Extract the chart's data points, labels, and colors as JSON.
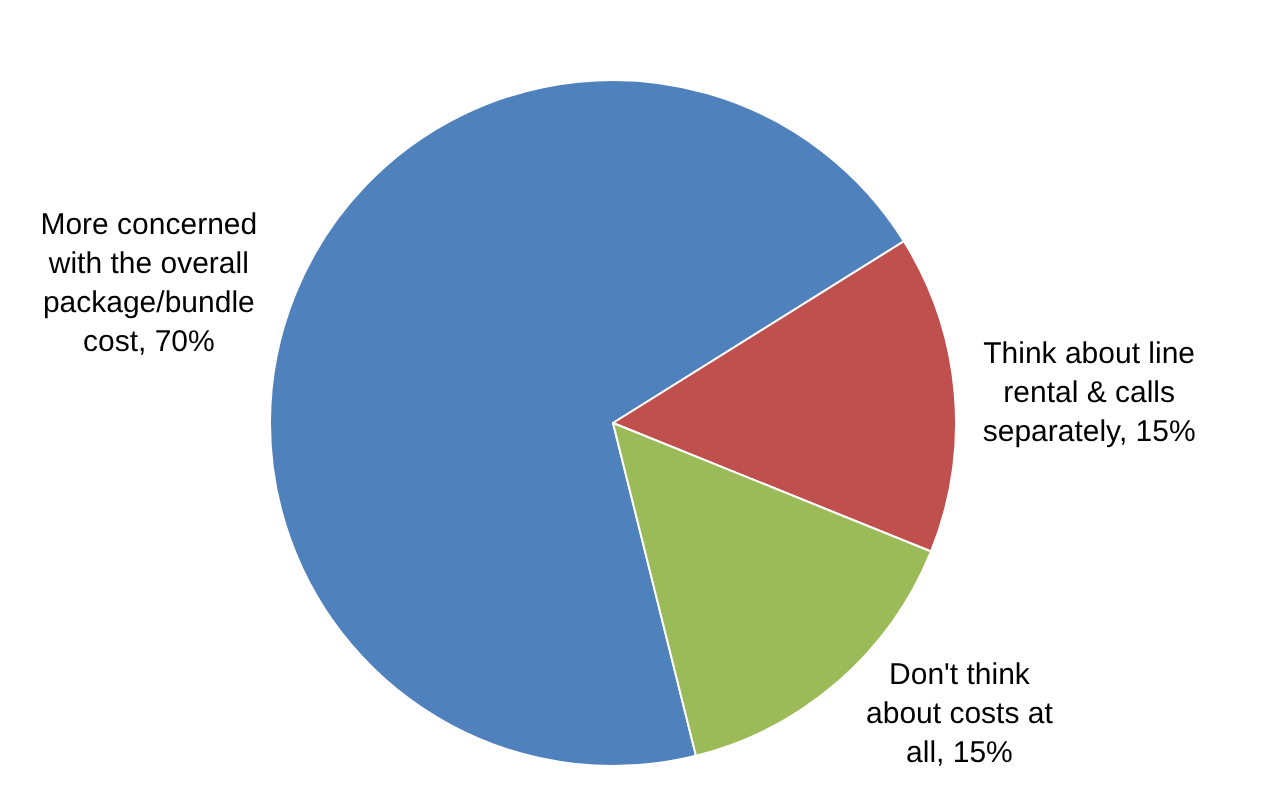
{
  "chart_data": {
    "type": "pie",
    "categories": [
      "More concerned with the overall package/bundle cost",
      "Think about line rental & calls separately",
      "Don't think about costs at all"
    ],
    "values": [
      70,
      15,
      15
    ],
    "value_labels": [
      "70%",
      "15%",
      "15%"
    ],
    "colors": [
      "#4f81bd",
      "#c0504d",
      "#9bbb59"
    ],
    "legend": false
  }
}
